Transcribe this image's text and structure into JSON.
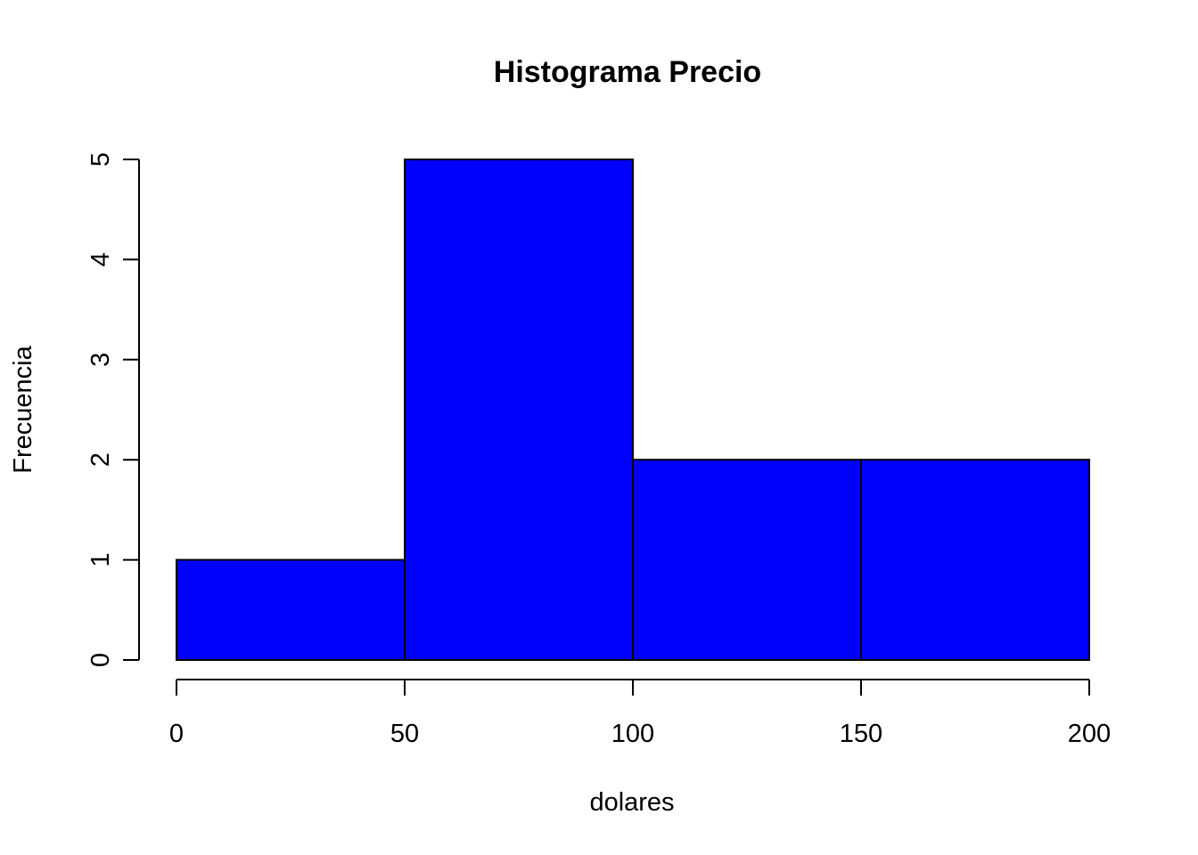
{
  "chart_data": {
    "type": "bar",
    "subtype": "histogram",
    "title": "Histograma Precio",
    "xlabel": "dolares",
    "ylabel": "Frecuencia",
    "bins": [
      {
        "from": 0,
        "to": 50,
        "count": 1
      },
      {
        "from": 50,
        "to": 100,
        "count": 5
      },
      {
        "from": 100,
        "to": 150,
        "count": 2
      },
      {
        "from": 150,
        "to": 200,
        "count": 2
      }
    ],
    "xlim": [
      0,
      200
    ],
    "ylim": [
      0,
      5
    ],
    "x_ticks": [
      0,
      50,
      100,
      150,
      200
    ],
    "x_tick_labels": [
      "0",
      "50",
      "100",
      "150",
      "200"
    ],
    "y_ticks": [
      0,
      1,
      2,
      3,
      4,
      5
    ],
    "y_tick_labels": [
      "0",
      "1",
      "2",
      "3",
      "4",
      "5"
    ],
    "bar_color": "#0000ff",
    "edge_color": "#000000",
    "grid": false,
    "legend": "none"
  }
}
